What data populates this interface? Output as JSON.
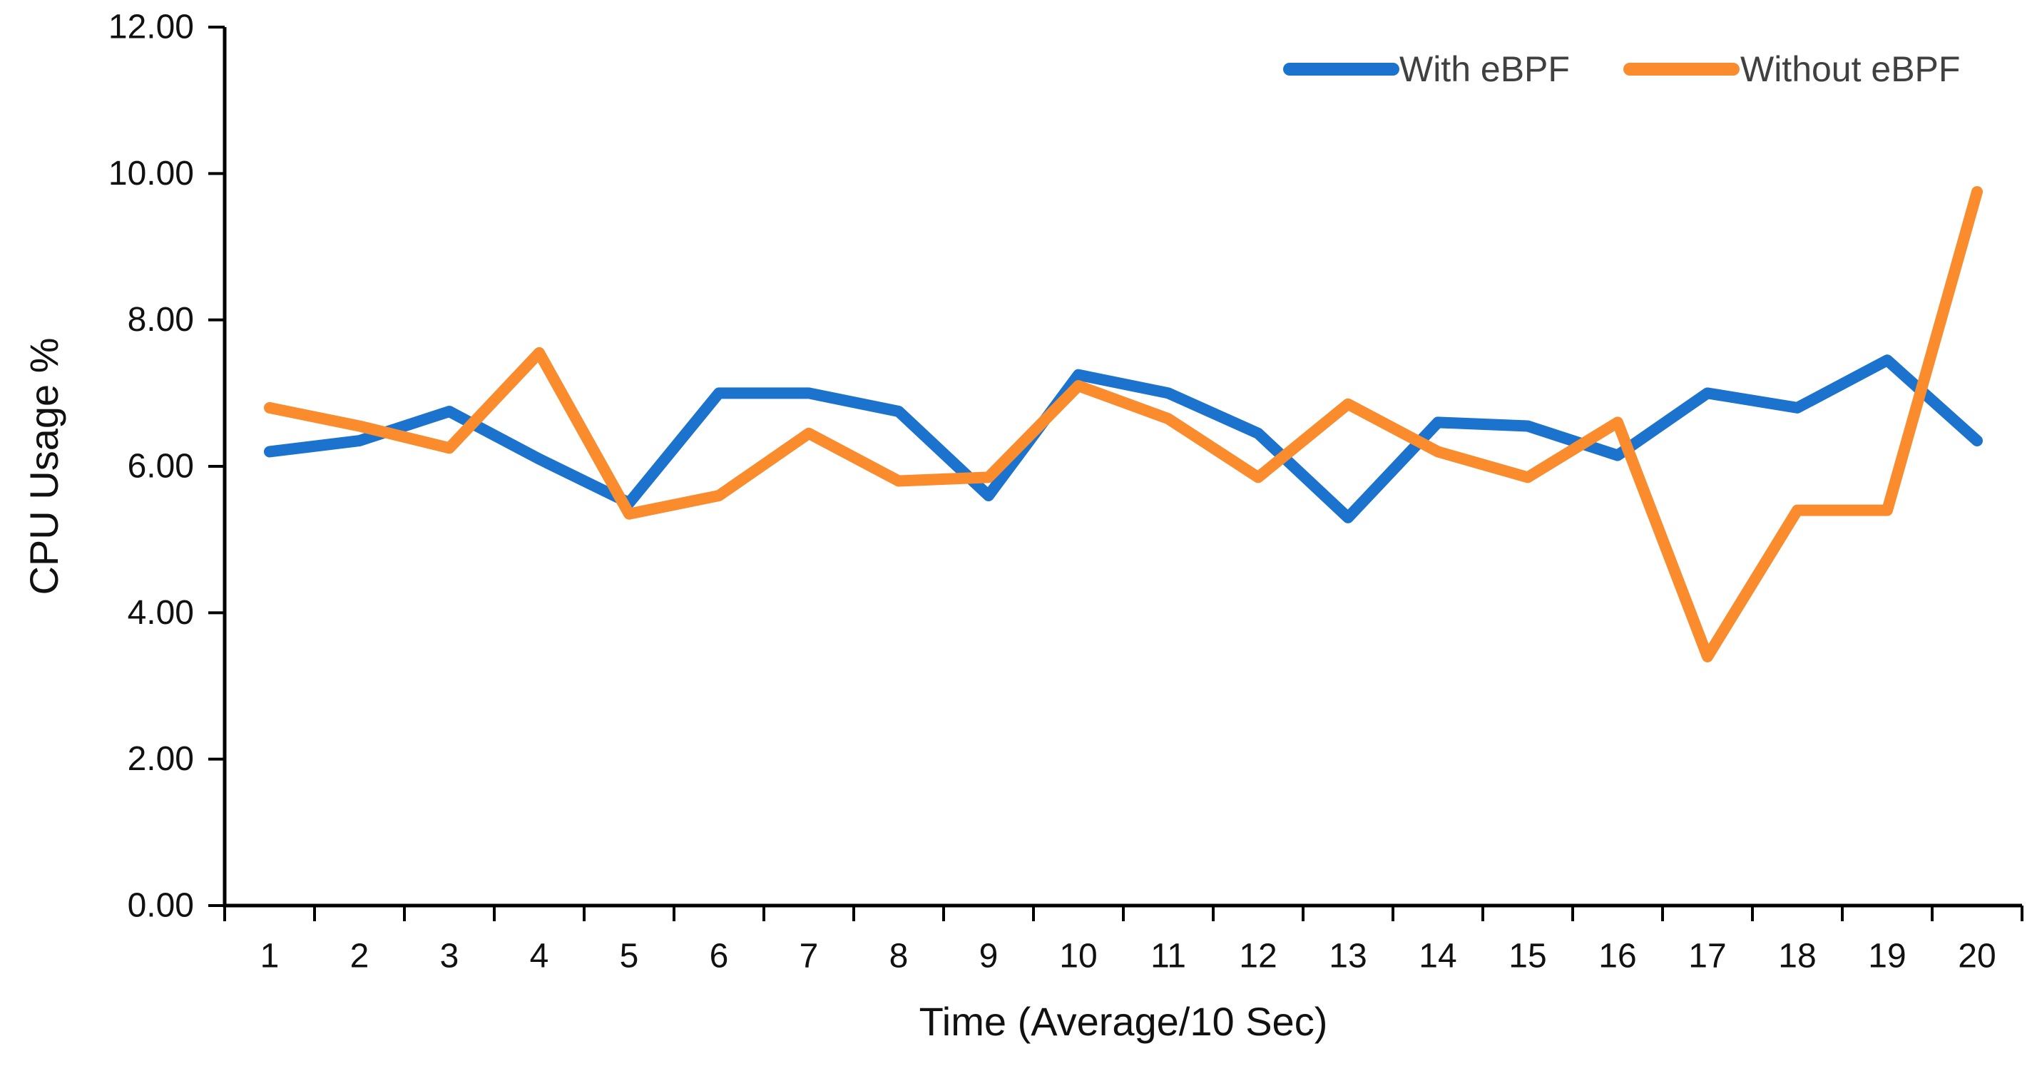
{
  "chart_data": {
    "type": "line",
    "title": "",
    "xlabel": "Time (Average/10 Sec)",
    "ylabel": "CPU Usage %",
    "ylim": [
      0,
      12
    ],
    "ytick_step": 2,
    "ytick_labels": [
      "0.00",
      "2.00",
      "4.00",
      "6.00",
      "8.00",
      "10.00",
      "12.00"
    ],
    "categories": [
      "1",
      "2",
      "3",
      "4",
      "5",
      "6",
      "7",
      "8",
      "9",
      "10",
      "11",
      "12",
      "13",
      "14",
      "15",
      "16",
      "17",
      "18",
      "19",
      "20"
    ],
    "grid": "off",
    "legend_position": "top-right",
    "series": [
      {
        "name": "With eBPF",
        "color": "#1C73CD",
        "values": [
          6.2,
          6.35,
          6.75,
          6.1,
          5.5,
          7.0,
          7.0,
          6.75,
          5.6,
          7.25,
          7.0,
          6.45,
          5.3,
          6.6,
          6.55,
          6.15,
          7.0,
          6.8,
          7.45,
          6.35
        ]
      },
      {
        "name": "Without eBPF",
        "color": "#FA8C2E",
        "values": [
          6.8,
          6.55,
          6.25,
          7.55,
          5.35,
          5.6,
          6.45,
          5.8,
          5.85,
          7.1,
          6.65,
          5.85,
          6.85,
          6.2,
          5.85,
          6.6,
          3.4,
          5.4,
          5.4,
          9.75
        ]
      }
    ]
  },
  "styles": {
    "axis_color": "#000000",
    "tick_text_color": "#111111",
    "legend_text_color": "#404040",
    "background": "#ffffff"
  }
}
